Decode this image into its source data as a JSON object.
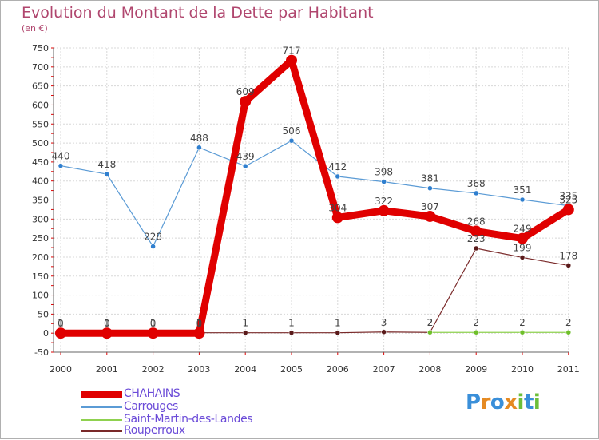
{
  "header": {
    "title": "Evolution du Montant de la Dette par Habitant",
    "unit": "(en €)"
  },
  "chart_data": {
    "type": "line",
    "title": "Evolution du Montant de la Dette par Habitant",
    "ylabel": "(en €)",
    "xlabel": "",
    "categories": [
      "2000",
      "2001",
      "2002",
      "2003",
      "2004",
      "2005",
      "2006",
      "2007",
      "2008",
      "2009",
      "2010",
      "2011"
    ],
    "yticks": [
      "-50",
      "0",
      "50",
      "100",
      "150",
      "200",
      "250",
      "300",
      "350",
      "400",
      "450",
      "500",
      "550",
      "600",
      "650",
      "700",
      "750"
    ],
    "ylim": [
      -50,
      750
    ],
    "grid": true,
    "series": [
      {
        "name": "CHAHAINS",
        "color": "#e00000",
        "values": [
          0,
          0,
          0,
          0,
          609,
          717,
          304,
          322,
          307,
          268,
          249,
          325
        ],
        "labels": [
          "0",
          "0",
          "0",
          "0",
          "609",
          "717",
          "304",
          "322",
          "307",
          "268",
          "249",
          "325"
        ]
      },
      {
        "name": "Carrouges",
        "color": "#5b9bd5",
        "values": [
          440,
          418,
          228,
          488,
          439,
          506,
          412,
          398,
          381,
          368,
          351,
          335
        ],
        "labels": [
          "440",
          "418",
          "228",
          "488",
          "439",
          "506",
          "412",
          "398",
          "381",
          "368",
          "351",
          "335"
        ]
      },
      {
        "name": "Saint-Martin-des-Landes",
        "color": "#8fd14f",
        "values": [
          null,
          null,
          null,
          null,
          null,
          null,
          null,
          null,
          2,
          2,
          2,
          2
        ],
        "labels": [
          "",
          "",
          "",
          "",
          "",
          "",
          "",
          "",
          "2",
          "2",
          "2",
          "2"
        ]
      },
      {
        "name": "Rouperroux",
        "color": "#7a2a2a",
        "values": [
          1,
          1,
          1,
          1,
          1,
          1,
          1,
          3,
          2,
          223,
          199,
          178
        ],
        "labels": [
          "1",
          "1",
          "1",
          "1",
          "1",
          "1",
          "1",
          "3",
          "2",
          "223",
          "199",
          "178"
        ]
      }
    ]
  },
  "legend": {
    "items": [
      {
        "label": "CHAHAINS",
        "color": "#e00000"
      },
      {
        "label": "Carrouges",
        "color": "#5b9bd5"
      },
      {
        "label": "Saint-Martin-des-Landes",
        "color": "#8fd14f"
      },
      {
        "label": "Rouperroux",
        "color": "#7a2a2a"
      }
    ]
  },
  "logo": {
    "letters": [
      "P",
      "r",
      "o",
      "x",
      "i",
      "t",
      "i"
    ],
    "colors": [
      "#3a8fd9",
      "#e58a22",
      "#3a8fd9",
      "#e58a22",
      "#6cbf3a",
      "#3a8fd9",
      "#6cbf3a"
    ]
  }
}
